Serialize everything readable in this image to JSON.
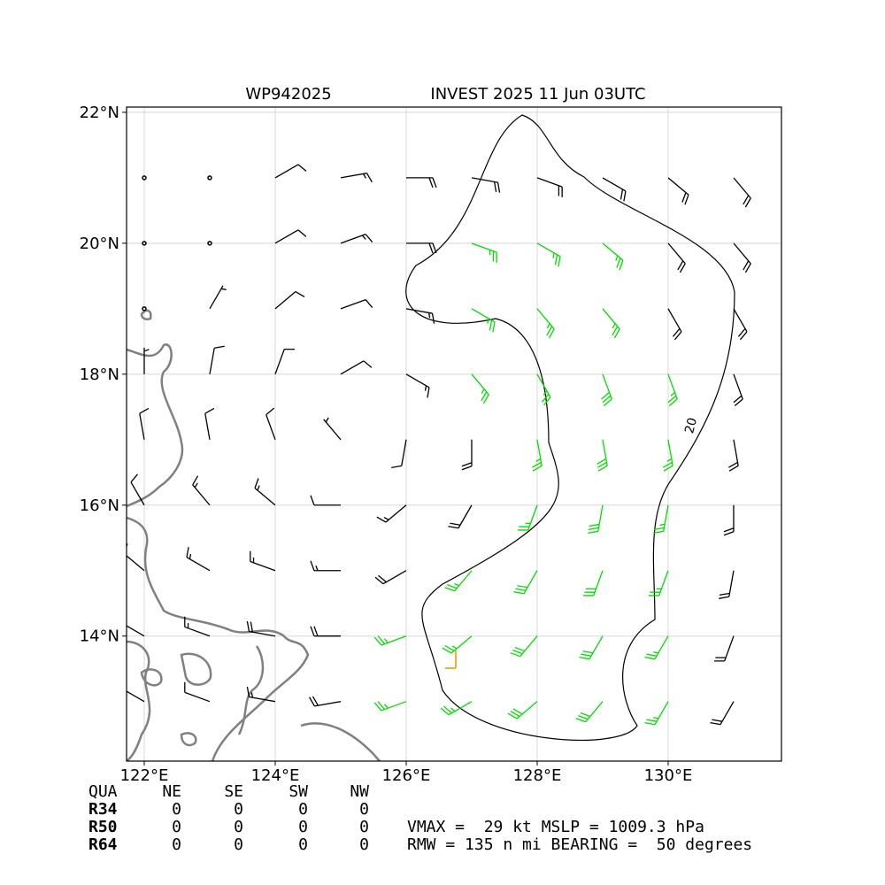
{
  "chart_data": {
    "type": "barb",
    "title_left": "WP942025",
    "title_right": "INVEST 2025 11 Jun 03UTC",
    "xlim": [
      121.73,
      131.73
    ],
    "ylim": [
      12.09,
      22.08
    ],
    "xticks": [
      {
        "value": 122,
        "label": "122°E"
      },
      {
        "value": 124,
        "label": "124°E"
      },
      {
        "value": 126,
        "label": "126°E"
      },
      {
        "value": 128,
        "label": "128°E"
      },
      {
        "value": 130,
        "label": "130°E"
      }
    ],
    "yticks": [
      {
        "value": 14,
        "label": "14°N"
      },
      {
        "value": 16,
        "label": "16°N"
      },
      {
        "value": 18,
        "label": "18°N"
      },
      {
        "value": 20,
        "label": "20°N"
      },
      {
        "value": 22,
        "label": "22°N"
      }
    ],
    "grid": true,
    "color": "#000000",
    "highlight_color": "#00dd00",
    "highlight_min": 25,
    "barbs": {
      "lons": [
        122,
        123,
        124,
        125,
        126,
        127,
        128,
        129,
        130,
        131
      ],
      "lats": [
        21,
        20,
        19,
        18,
        17,
        16,
        15,
        14,
        13
      ],
      "speed": [
        [
          0,
          0,
          10,
          15,
          20,
          20,
          20,
          20,
          20,
          20
        ],
        [
          0,
          0,
          10,
          15,
          20,
          25,
          25,
          25,
          20,
          20
        ],
        [
          0,
          5,
          10,
          10,
          15,
          25,
          25,
          25,
          20,
          20
        ],
        [
          5,
          10,
          10,
          10,
          15,
          25,
          25,
          30,
          25,
          20
        ],
        [
          10,
          10,
          10,
          5,
          10,
          20,
          25,
          30,
          25,
          20
        ],
        [
          10,
          15,
          15,
          10,
          15,
          20,
          25,
          30,
          25,
          20
        ],
        [
          10,
          15,
          15,
          15,
          20,
          25,
          30,
          30,
          25,
          20
        ],
        [
          5,
          15,
          20,
          20,
          25,
          25,
          30,
          30,
          25,
          20
        ],
        [
          5,
          10,
          15,
          20,
          25,
          25,
          30,
          30,
          25,
          20
        ]
      ],
      "direction": [
        [
          40,
          50,
          60,
          80,
          90,
          100,
          110,
          120,
          130,
          140
        ],
        [
          30,
          40,
          60,
          70,
          90,
          110,
          120,
          130,
          140,
          140
        ],
        [
          20,
          30,
          50,
          70,
          100,
          120,
          140,
          140,
          150,
          150
        ],
        [
          0,
          10,
          20,
          60,
          120,
          140,
          150,
          160,
          160,
          160
        ],
        [
          350,
          350,
          340,
          320,
          190,
          180,
          170,
          170,
          170,
          170
        ],
        [
          330,
          320,
          310,
          270,
          230,
          210,
          200,
          190,
          190,
          180
        ],
        [
          310,
          300,
          290,
          270,
          240,
          220,
          210,
          200,
          200,
          190
        ],
        [
          300,
          290,
          280,
          270,
          250,
          230,
          220,
          210,
          210,
          200
        ],
        [
          300,
          290,
          280,
          260,
          250,
          240,
          230,
          220,
          210,
          210
        ]
      ]
    },
    "contour_label": "20",
    "table": {
      "header": [
        "QUA",
        "NE",
        "SE",
        "SW",
        "NW"
      ],
      "rows": [
        [
          "R34",
          0,
          0,
          0,
          0
        ],
        [
          "R50",
          0,
          0,
          0,
          0
        ],
        [
          "R64",
          0,
          0,
          0,
          0
        ]
      ]
    },
    "info": [
      "VMAX =  29 kt MSLP = 1009.3 hPa",
      "RMW = 135 n mi BEARING =  50 degrees"
    ]
  }
}
